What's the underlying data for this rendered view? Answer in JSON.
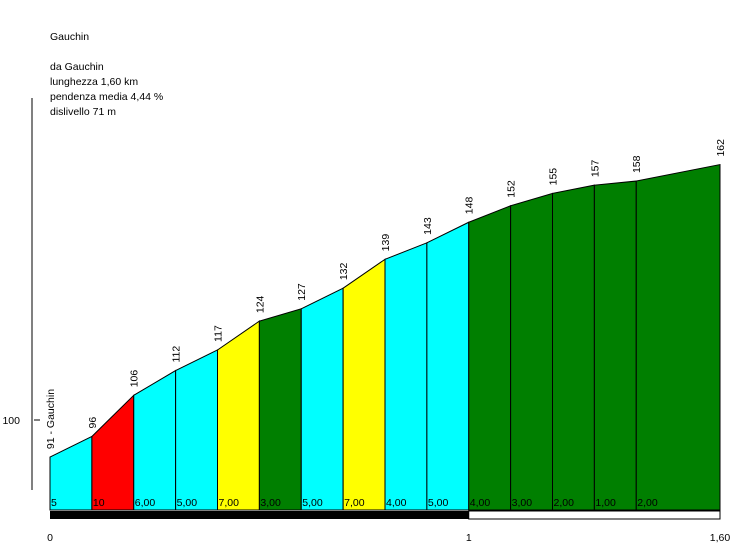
{
  "title": "Gauchin",
  "info": {
    "from": "da Gauchin",
    "length": "lunghezza 1,60 km",
    "gradient": "pendenza media 4,44 %",
    "gain": "dislivello 71 m"
  },
  "chart_data": {
    "type": "area",
    "title": "Gauchin",
    "start_label": "91 - Gauchin",
    "x_km": [
      0,
      0.1,
      0.2,
      0.3,
      0.4,
      0.5,
      0.6,
      0.7,
      0.8,
      0.9,
      1.0,
      1.1,
      1.2,
      1.3,
      1.4,
      1.6
    ],
    "elevations": [
      91,
      96,
      106,
      112,
      117,
      124,
      127,
      132,
      139,
      143,
      148,
      152,
      155,
      157,
      158,
      162
    ],
    "segments": [
      {
        "grade_label": "5",
        "color": "#00ffff"
      },
      {
        "grade_label": "10",
        "color": "#ff0000"
      },
      {
        "grade_label": "6,00",
        "color": "#00ffff"
      },
      {
        "grade_label": "5,00",
        "color": "#00ffff"
      },
      {
        "grade_label": "7,00",
        "color": "#ffff00"
      },
      {
        "grade_label": "3,00",
        "color": "#007f00"
      },
      {
        "grade_label": "5,00",
        "color": "#00ffff"
      },
      {
        "grade_label": "7,00",
        "color": "#ffff00"
      },
      {
        "grade_label": "4,00",
        "color": "#00ffff"
      },
      {
        "grade_label": "5,00",
        "color": "#00ffff"
      },
      {
        "grade_label": "4,00",
        "color": "#007f00"
      },
      {
        "grade_label": "3,00",
        "color": "#007f00"
      },
      {
        "grade_label": "2,00",
        "color": "#007f00"
      },
      {
        "grade_label": "1,00",
        "color": "#007f00"
      },
      {
        "grade_label": "2,00",
        "color": "#007f00"
      }
    ],
    "y_tick": {
      "value": 100,
      "label": "100"
    },
    "x_ticks": [
      {
        "value": 0,
        "label": "0"
      },
      {
        "value": 1,
        "label": "1"
      },
      {
        "value": 1.6,
        "label": "1,60"
      }
    ],
    "xlim": [
      0,
      1.6
    ]
  }
}
